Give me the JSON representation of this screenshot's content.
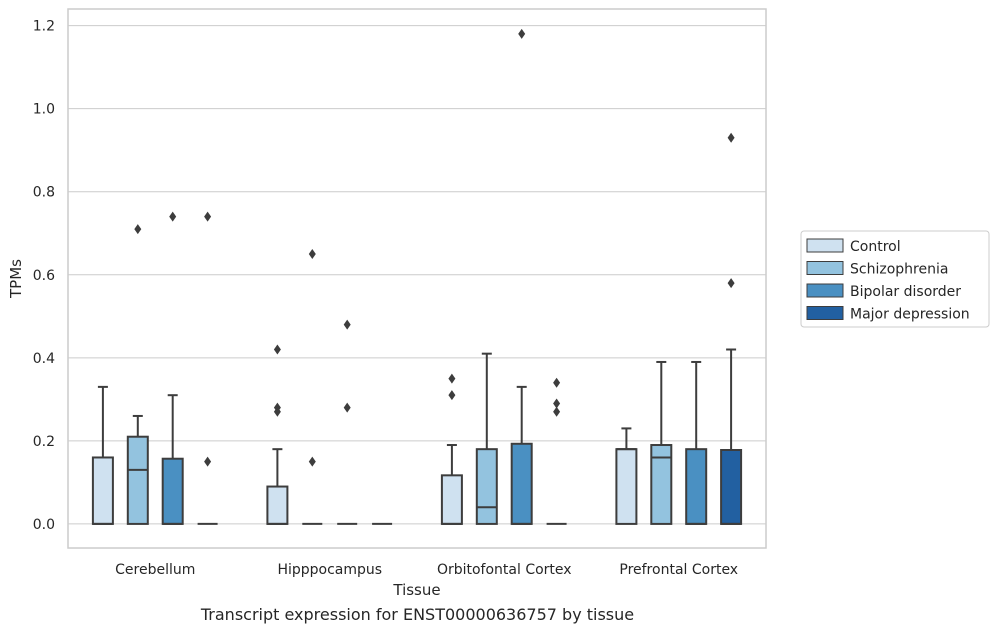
{
  "caption": "Transcript expression for ENST00000636757 by tissue",
  "colors": {
    "Control": "#cfe1f0",
    "Schizophrenia": "#93c3df",
    "Bipolar disorder": "#4a90c2",
    "Major depression": "#2260a1",
    "box_edge": "#3d3d3d",
    "grid": "#cccccc",
    "frame": "#cccccc"
  },
  "chart_data": {
    "type": "box",
    "xlabel": "Tissue",
    "ylabel": "TPMs",
    "ylim": [
      -0.058,
      1.24
    ],
    "yticks": [
      0.0,
      0.2,
      0.4,
      0.6,
      0.8,
      1.0,
      1.2
    ],
    "ytick_labels": [
      "0.0",
      "0.2",
      "0.4",
      "0.6",
      "0.8",
      "1.0",
      "1.2"
    ],
    "grid": true,
    "legend_position": "right",
    "categories": [
      "Cerebellum",
      "Hipppocampus",
      "Orbitofontal Cortex",
      "Prefrontal Cortex"
    ],
    "series": [
      {
        "name": "Control",
        "boxes": [
          {
            "q1": 0,
            "median": 0,
            "q3": 0.16,
            "whisker_low": 0,
            "whisker_high": 0.33,
            "outliers": []
          },
          {
            "q1": 0,
            "median": 0,
            "q3": 0.09,
            "whisker_low": 0,
            "whisker_high": 0.18,
            "outliers": [
              0.42,
              0.28,
              0.27
            ]
          },
          {
            "q1": 0,
            "median": 0,
            "q3": 0.117,
            "whisker_low": 0,
            "whisker_high": 0.19,
            "outliers": [
              0.35,
              0.31
            ]
          },
          {
            "q1": 0,
            "median": 0.18,
            "q3": 0.18,
            "whisker_low": 0,
            "whisker_high": 0.23,
            "outliers": []
          }
        ]
      },
      {
        "name": "Schizophrenia",
        "boxes": [
          {
            "q1": 0,
            "median": 0.13,
            "q3": 0.21,
            "whisker_low": 0,
            "whisker_high": 0.26,
            "outliers": [
              0.71
            ]
          },
          {
            "q1": 0,
            "median": 0,
            "q3": 0,
            "whisker_low": 0,
            "whisker_high": 0,
            "outliers": [
              0.65,
              0.15
            ]
          },
          {
            "q1": 0,
            "median": 0.04,
            "q3": 0.18,
            "whisker_low": 0,
            "whisker_high": 0.41,
            "outliers": []
          },
          {
            "q1": 0,
            "median": 0.16,
            "q3": 0.19,
            "whisker_low": 0,
            "whisker_high": 0.39,
            "outliers": []
          }
        ]
      },
      {
        "name": "Bipolar disorder",
        "boxes": [
          {
            "q1": 0,
            "median": 0,
            "q3": 0.157,
            "whisker_low": 0,
            "whisker_high": 0.31,
            "outliers": [
              0.74
            ]
          },
          {
            "q1": 0,
            "median": 0,
            "q3": 0,
            "whisker_low": 0,
            "whisker_high": 0,
            "outliers": [
              0.48,
              0.28
            ]
          },
          {
            "q1": 0,
            "median": 0,
            "q3": 0.193,
            "whisker_low": 0,
            "whisker_high": 0.33,
            "outliers": [
              1.18
            ]
          },
          {
            "q1": 0,
            "median": 0,
            "q3": 0.18,
            "whisker_low": 0,
            "whisker_high": 0.39,
            "outliers": []
          }
        ]
      },
      {
        "name": "Major depression",
        "boxes": [
          {
            "q1": 0,
            "median": 0,
            "q3": 0,
            "whisker_low": 0,
            "whisker_high": 0,
            "outliers": [
              0.74,
              0.15
            ]
          },
          {
            "q1": 0,
            "median": 0,
            "q3": 0,
            "whisker_low": 0,
            "whisker_high": 0,
            "outliers": []
          },
          {
            "q1": 0,
            "median": 0,
            "q3": 0,
            "whisker_low": 0,
            "whisker_high": 0,
            "outliers": [
              0.34,
              0.29,
              0.27
            ]
          },
          {
            "q1": 0,
            "median": 0,
            "q3": 0.178,
            "whisker_low": 0,
            "whisker_high": 0.42,
            "outliers": [
              0.93,
              0.58
            ]
          }
        ]
      }
    ]
  }
}
